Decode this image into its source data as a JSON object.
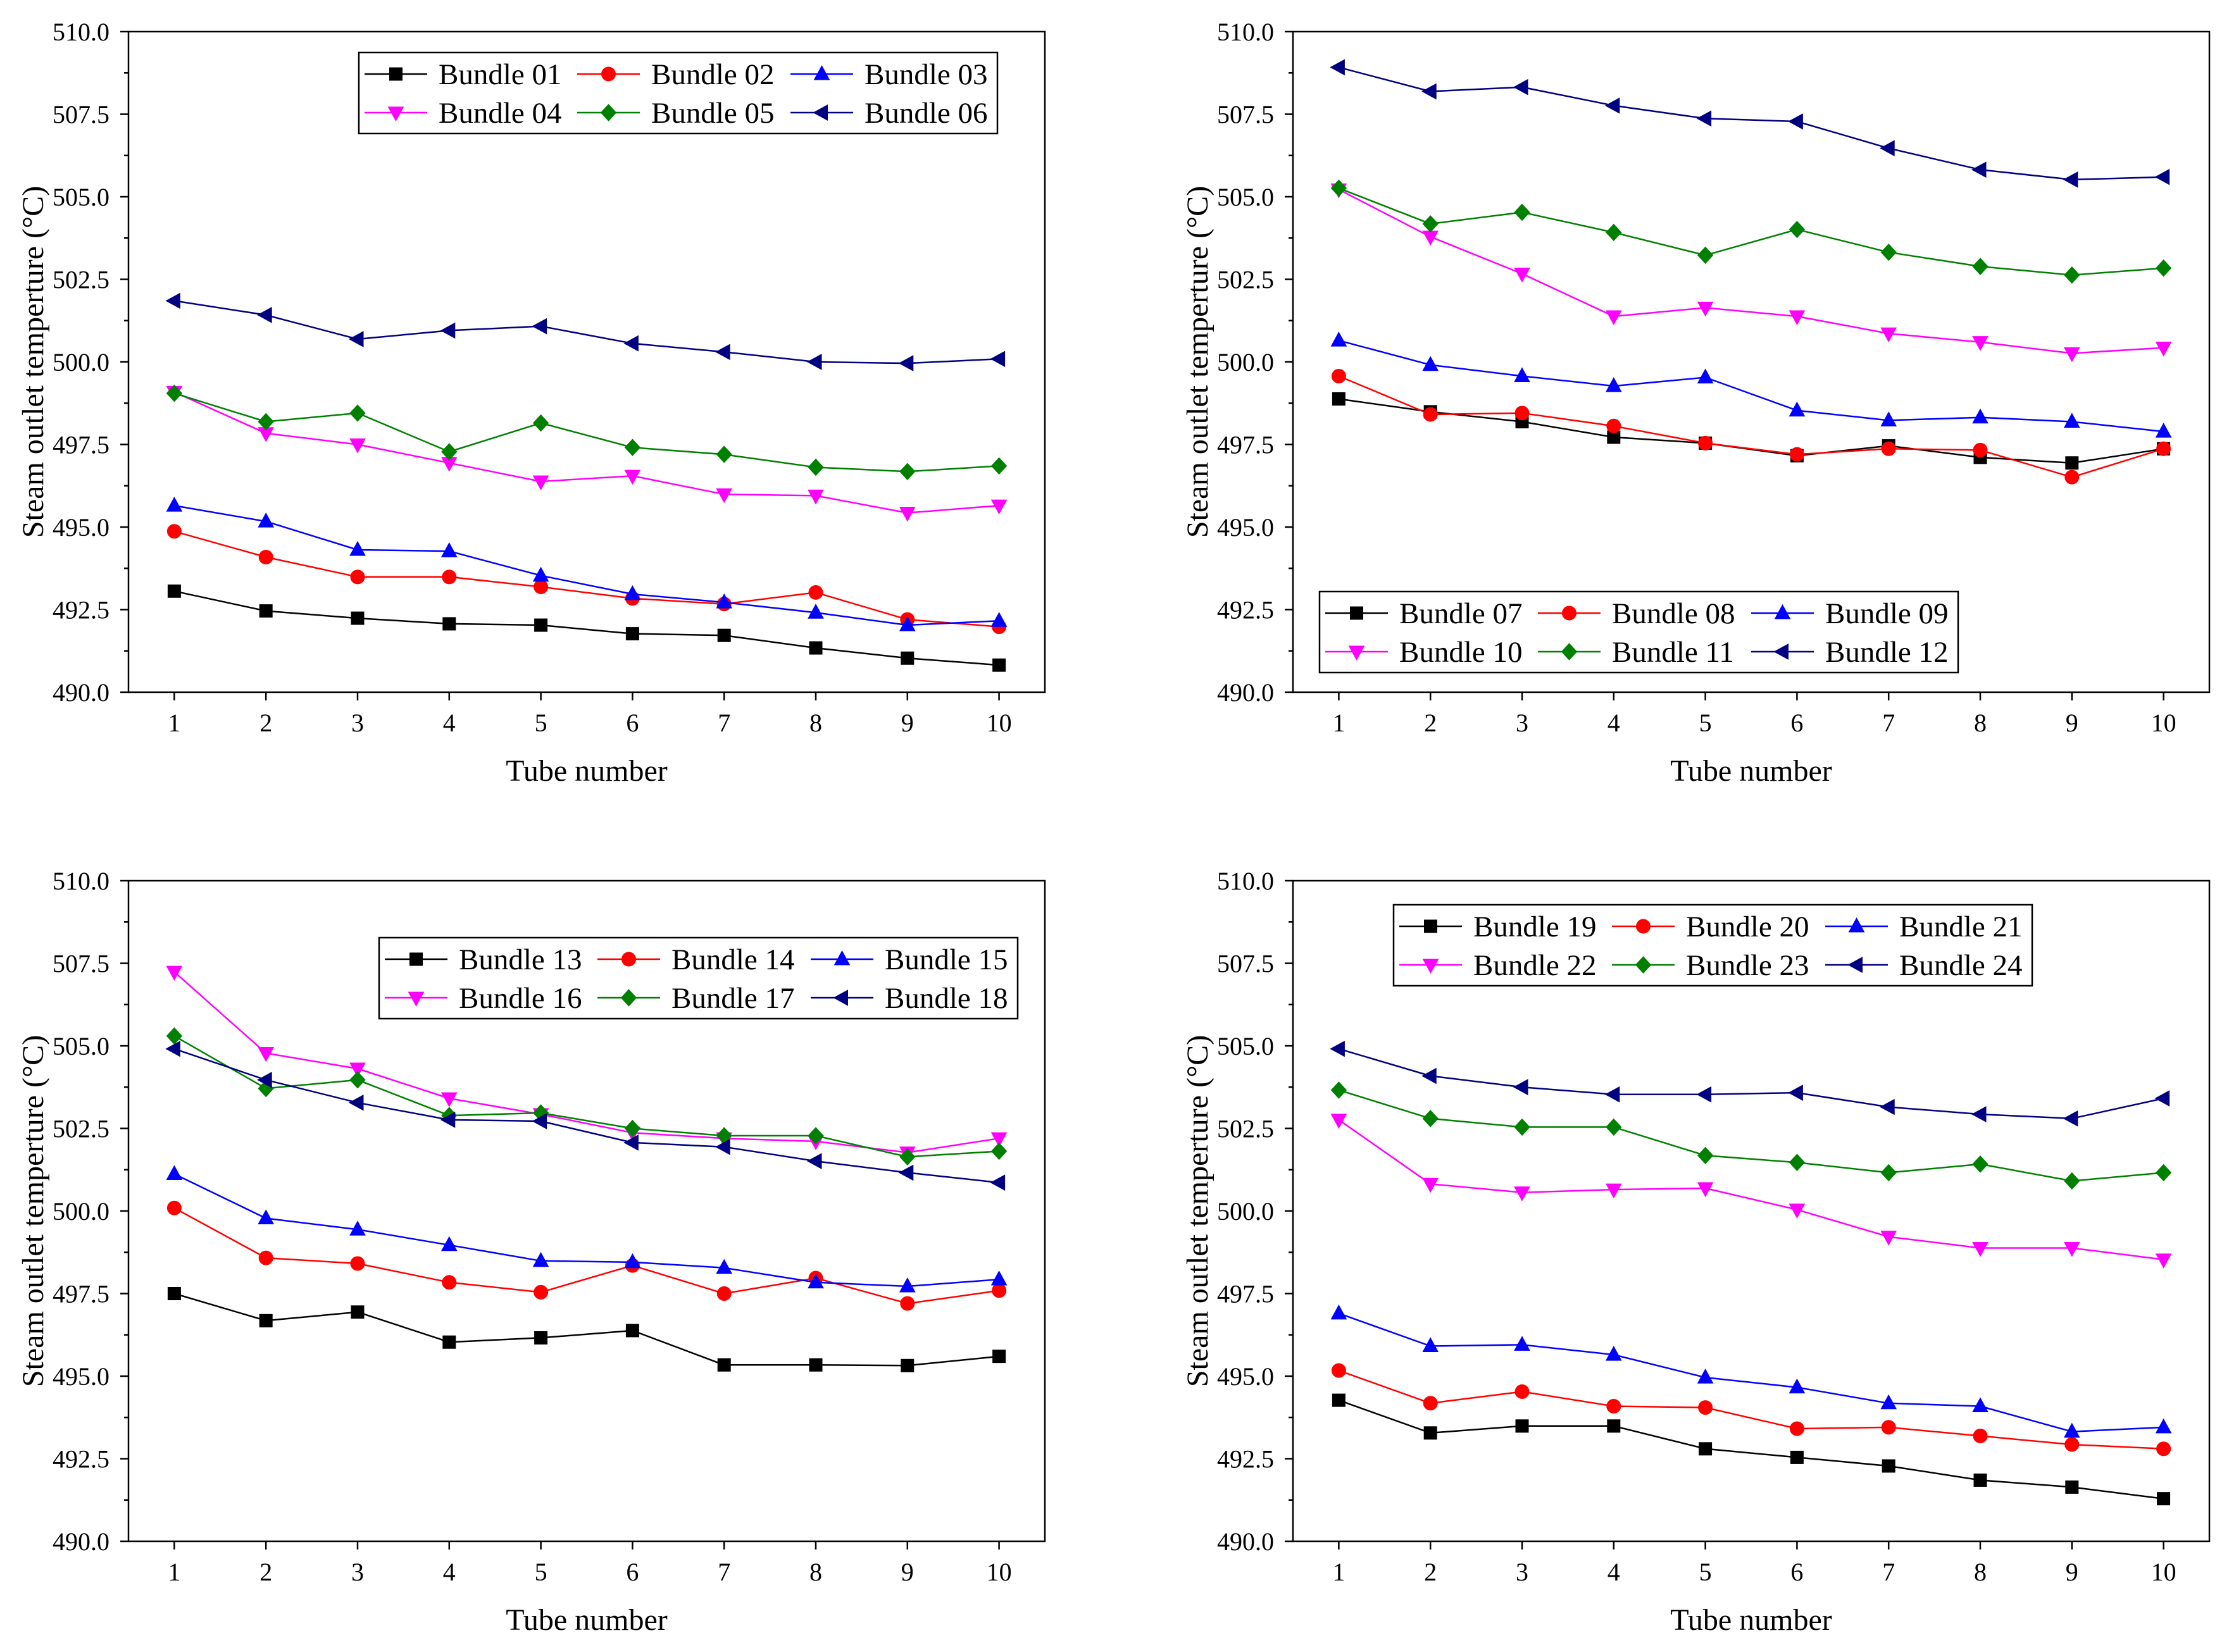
{
  "chart_data": [
    {
      "type": "line",
      "xlabel": "Tube number",
      "ylabel": "Steam outlet temperture (°C)",
      "x": [
        1,
        2,
        3,
        4,
        5,
        6,
        7,
        8,
        9,
        10
      ],
      "xlim": [
        0.5,
        10.5
      ],
      "ylim": [
        490,
        510
      ],
      "yticks": [
        490,
        492.5,
        495,
        497.5,
        500,
        502.5,
        505,
        507.5,
        510
      ],
      "ytick_labels": [
        "490.0",
        "492.5",
        "495.0",
        "497.5",
        "500.0",
        "502.5",
        "505.0",
        "507.5",
        "510.0"
      ],
      "xtick_labels": [
        "1",
        "2",
        "3",
        "4",
        "5",
        "6",
        "7",
        "8",
        "9",
        "10"
      ],
      "grid": false,
      "legend_position": "top-right",
      "series": [
        {
          "name": "Bundle 01",
          "color": "#000000",
          "marker": "square",
          "values": [
            493.06,
            492.46,
            492.24,
            492.07,
            492.03,
            491.77,
            491.72,
            491.34,
            491.03,
            490.82
          ]
        },
        {
          "name": "Bundle 02",
          "color": "#ff0000",
          "marker": "circle",
          "values": [
            494.87,
            494.09,
            493.49,
            493.49,
            493.19,
            492.84,
            492.67,
            493.02,
            492.2,
            491.98
          ]
        },
        {
          "name": "Bundle 03",
          "color": "#0000ff",
          "marker": "triangle-up",
          "values": [
            495.65,
            495.17,
            494.31,
            494.27,
            493.53,
            492.97,
            492.72,
            492.41,
            492.03,
            492.16
          ]
        },
        {
          "name": "Bundle 04",
          "color": "#ff00ff",
          "marker": "triangle-down",
          "values": [
            499.09,
            497.84,
            497.5,
            496.94,
            496.38,
            496.55,
            495.99,
            495.95,
            495.43,
            495.65
          ]
        },
        {
          "name": "Bundle 05",
          "color": "#008000",
          "marker": "diamond",
          "values": [
            499.05,
            498.19,
            498.45,
            497.28,
            498.15,
            497.41,
            497.2,
            496.81,
            496.68,
            496.85
          ]
        },
        {
          "name": "Bundle 06",
          "color": "#000080",
          "marker": "triangle-left",
          "values": [
            501.85,
            501.42,
            500.69,
            500.95,
            501.08,
            500.56,
            500.3,
            500.0,
            499.96,
            500.09
          ]
        }
      ]
    },
    {
      "type": "line",
      "xlabel": "Tube number",
      "ylabel": "Steam outlet temperture (°C)",
      "x": [
        1,
        2,
        3,
        4,
        5,
        6,
        7,
        8,
        9,
        10
      ],
      "xlim": [
        0.5,
        10.5
      ],
      "ylim": [
        490,
        510
      ],
      "yticks": [
        490,
        492.5,
        495,
        497.5,
        500,
        502.5,
        505,
        507.5,
        510
      ],
      "ytick_labels": [
        "490.0",
        "492.5",
        "495.0",
        "497.5",
        "500.0",
        "502.5",
        "505.0",
        "507.5",
        "510.0"
      ],
      "xtick_labels": [
        "1",
        "2",
        "3",
        "4",
        "5",
        "6",
        "7",
        "8",
        "9",
        "10"
      ],
      "grid": false,
      "legend_position": "bottom-left",
      "series": [
        {
          "name": "Bundle 07",
          "color": "#000000",
          "marker": "square",
          "values": [
            498.88,
            498.49,
            498.19,
            497.72,
            497.54,
            497.16,
            497.46,
            497.11,
            496.94,
            497.37
          ]
        },
        {
          "name": "Bundle 08",
          "color": "#ff0000",
          "marker": "circle",
          "values": [
            499.57,
            498.41,
            498.45,
            498.06,
            497.54,
            497.2,
            497.37,
            497.33,
            496.51,
            497.37
          ]
        },
        {
          "name": "Bundle 09",
          "color": "#0000ff",
          "marker": "triangle-up",
          "values": [
            500.65,
            499.91,
            499.57,
            499.27,
            499.53,
            498.53,
            498.23,
            498.32,
            498.19,
            497.89
          ]
        },
        {
          "name": "Bundle 10",
          "color": "#ff00ff",
          "marker": "triangle-down",
          "values": [
            505.22,
            503.79,
            502.67,
            501.38,
            501.64,
            501.38,
            500.86,
            500.6,
            500.26,
            500.43
          ]
        },
        {
          "name": "Bundle 11",
          "color": "#008000",
          "marker": "diamond",
          "values": [
            505.26,
            504.18,
            504.53,
            503.92,
            503.23,
            504.01,
            503.32,
            502.89,
            502.63,
            502.84
          ]
        },
        {
          "name": "Bundle 12",
          "color": "#000080",
          "marker": "triangle-left",
          "values": [
            508.92,
            508.19,
            508.32,
            507.76,
            507.37,
            507.28,
            506.47,
            505.82,
            505.52,
            505.6
          ]
        }
      ]
    },
    {
      "type": "line",
      "xlabel": "Tube number",
      "ylabel": "Steam outlet temperture (°C)",
      "x": [
        1,
        2,
        3,
        4,
        5,
        6,
        7,
        8,
        9,
        10
      ],
      "xlim": [
        0.5,
        10.5
      ],
      "ylim": [
        490,
        510
      ],
      "yticks": [
        490,
        492.5,
        495,
        497.5,
        500,
        502.5,
        505,
        507.5,
        510
      ],
      "ytick_labels": [
        "490.0",
        "492.5",
        "495.0",
        "497.5",
        "500.0",
        "502.5",
        "505.0",
        "507.5",
        "510.0"
      ],
      "xtick_labels": [
        "1",
        "2",
        "3",
        "4",
        "5",
        "6",
        "7",
        "8",
        "9",
        "10"
      ],
      "grid": false,
      "legend_position": "top-right",
      "series": [
        {
          "name": "Bundle 13",
          "color": "#000000",
          "marker": "square",
          "values": [
            497.5,
            496.68,
            496.94,
            496.03,
            496.16,
            496.38,
            495.34,
            495.34,
            495.32,
            495.6
          ]
        },
        {
          "name": "Bundle 14",
          "color": "#ff0000",
          "marker": "circle",
          "values": [
            500.09,
            498.58,
            498.41,
            497.84,
            497.54,
            498.35,
            497.5,
            497.97,
            497.2,
            497.59
          ]
        },
        {
          "name": "Bundle 15",
          "color": "#0000ff",
          "marker": "triangle-up",
          "values": [
            501.12,
            499.78,
            499.44,
            498.97,
            498.49,
            498.45,
            498.28,
            497.84,
            497.72,
            497.93
          ]
        },
        {
          "name": "Bundle 16",
          "color": "#ff00ff",
          "marker": "triangle-down",
          "values": [
            507.24,
            504.78,
            504.31,
            503.41,
            502.93,
            502.37,
            502.2,
            502.11,
            501.77,
            502.2
          ]
        },
        {
          "name": "Bundle 17",
          "color": "#008000",
          "marker": "diamond",
          "values": [
            505.3,
            503.71,
            503.97,
            502.89,
            502.97,
            502.5,
            502.28,
            502.28,
            501.64,
            501.81
          ]
        },
        {
          "name": "Bundle 18",
          "color": "#000080",
          "marker": "triangle-left",
          "values": [
            504.91,
            503.97,
            503.28,
            502.76,
            502.72,
            502.07,
            501.94,
            501.51,
            501.16,
            500.86
          ]
        }
      ]
    },
    {
      "type": "line",
      "xlabel": "Tube number",
      "ylabel": "Steam outlet temperture (°C)",
      "x": [
        1,
        2,
        3,
        4,
        5,
        6,
        7,
        8,
        9,
        10
      ],
      "xlim": [
        0.5,
        10.5
      ],
      "ylim": [
        490,
        510
      ],
      "yticks": [
        490,
        492.5,
        495,
        497.5,
        500,
        502.5,
        505,
        507.5,
        510
      ],
      "ytick_labels": [
        "490.0",
        "492.5",
        "495.0",
        "497.5",
        "500.0",
        "502.5",
        "505.0",
        "507.5",
        "510.0"
      ],
      "xtick_labels": [
        "1",
        "2",
        "3",
        "4",
        "5",
        "6",
        "7",
        "8",
        "9",
        "10"
      ],
      "grid": false,
      "legend_position": "top-center",
      "series": [
        {
          "name": "Bundle 19",
          "color": "#000000",
          "marker": "square",
          "values": [
            494.27,
            493.28,
            493.49,
            493.49,
            492.8,
            492.54,
            492.28,
            491.85,
            491.64,
            491.29
          ]
        },
        {
          "name": "Bundle 20",
          "color": "#ff0000",
          "marker": "circle",
          "values": [
            495.17,
            494.18,
            494.53,
            494.09,
            494.05,
            493.41,
            493.45,
            493.19,
            492.93,
            492.8
          ]
        },
        {
          "name": "Bundle 21",
          "color": "#0000ff",
          "marker": "triangle-up",
          "values": [
            496.9,
            495.91,
            495.95,
            495.65,
            494.96,
            494.66,
            494.18,
            494.09,
            493.32,
            493.45
          ]
        },
        {
          "name": "Bundle 22",
          "color": "#ff00ff",
          "marker": "triangle-down",
          "values": [
            502.76,
            500.82,
            500.56,
            500.65,
            500.69,
            500.04,
            499.22,
            498.88,
            498.88,
            498.53
          ]
        },
        {
          "name": "Bundle 23",
          "color": "#008000",
          "marker": "diamond",
          "values": [
            503.66,
            502.8,
            502.54,
            502.54,
            501.68,
            501.47,
            501.16,
            501.42,
            500.91,
            501.16
          ]
        },
        {
          "name": "Bundle 24",
          "color": "#000080",
          "marker": "triangle-left",
          "values": [
            504.91,
            504.09,
            503.75,
            503.53,
            503.53,
            503.58,
            503.15,
            502.93,
            502.8,
            503.41
          ]
        }
      ]
    }
  ]
}
